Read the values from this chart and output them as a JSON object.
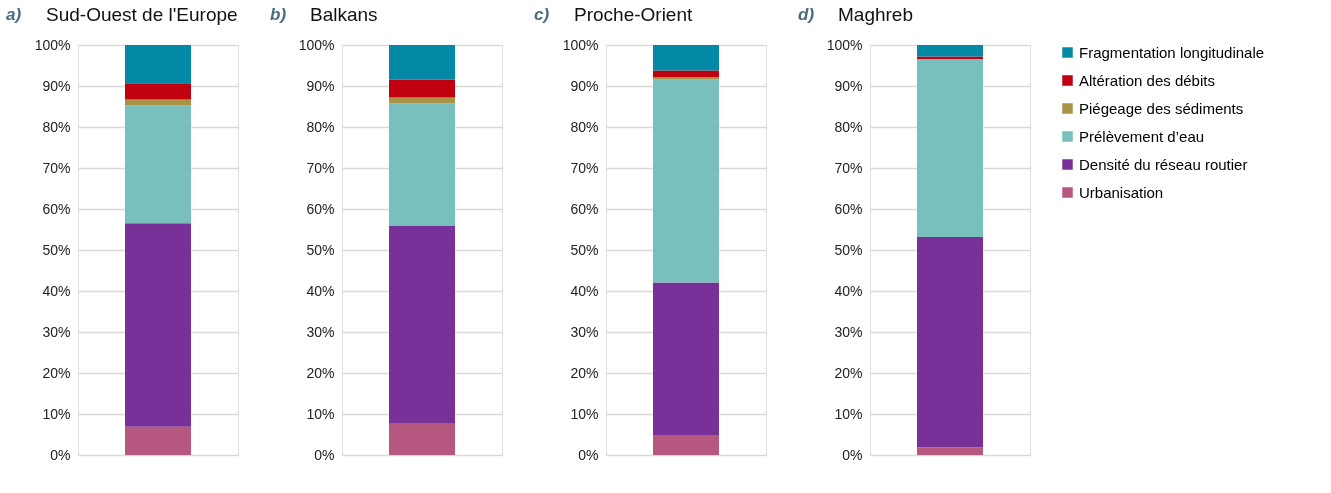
{
  "chart_data": [
    {
      "type": "bar",
      "stacked": true,
      "title": "Sud-Ouest de l'Europe",
      "annotations": [
        "a)"
      ],
      "categories": [
        null
      ],
      "ylim": [
        0,
        100
      ],
      "yticks": [
        {
          "value": 0,
          "label": "0%"
        },
        {
          "value": 10,
          "label": "10%"
        },
        {
          "value": 20,
          "label": "20%"
        },
        {
          "value": 30,
          "label": "30%"
        },
        {
          "value": 40,
          "label": "40%"
        },
        {
          "value": 50,
          "label": "50%"
        },
        {
          "value": 60,
          "label": "60%"
        },
        {
          "value": 70,
          "label": "70%"
        },
        {
          "value": 80,
          "label": "80%"
        },
        {
          "value": 90,
          "label": "90%"
        },
        {
          "value": 100,
          "label": "100%"
        }
      ],
      "grid": "y",
      "legend": false,
      "series": [
        {
          "color": "#b5577f",
          "values": [
            6.9
          ]
        },
        {
          "color": "#783198",
          "values": [
            49.6
          ]
        },
        {
          "color": "#78bfbe",
          "values": [
            28.8
          ]
        },
        {
          "color": "#a99445",
          "values": [
            1.4
          ]
        },
        {
          "color": "#c0000f",
          "values": [
            4.0
          ]
        },
        {
          "color": "#0388a6",
          "values": [
            9.3
          ]
        }
      ]
    },
    {
      "type": "bar",
      "stacked": true,
      "title": "Balkans",
      "annotations": [
        "b)"
      ],
      "categories": [
        null
      ],
      "ylim": [
        0,
        100
      ],
      "yticks": [
        {
          "value": 0,
          "label": "0%"
        },
        {
          "value": 10,
          "label": "10%"
        },
        {
          "value": 20,
          "label": "20%"
        },
        {
          "value": 30,
          "label": "30%"
        },
        {
          "value": 40,
          "label": "40%"
        },
        {
          "value": 50,
          "label": "50%"
        },
        {
          "value": 60,
          "label": "60%"
        },
        {
          "value": 70,
          "label": "70%"
        },
        {
          "value": 80,
          "label": "80%"
        },
        {
          "value": 90,
          "label": "90%"
        },
        {
          "value": 100,
          "label": "100%"
        }
      ],
      "grid": "y",
      "legend": false,
      "series": [
        {
          "color": "#b5577f",
          "values": [
            7.6
          ]
        },
        {
          "color": "#783198",
          "values": [
            48.4
          ]
        },
        {
          "color": "#78bfbe",
          "values": [
            29.8
          ]
        },
        {
          "color": "#a99445",
          "values": [
            1.4
          ]
        },
        {
          "color": "#c0000f",
          "values": [
            4.4
          ]
        },
        {
          "color": "#0388a6",
          "values": [
            8.4
          ]
        }
      ]
    },
    {
      "type": "bar",
      "stacked": true,
      "title": "Proche-Orient",
      "annotations": [
        "c)"
      ],
      "categories": [
        null
      ],
      "ylim": [
        0,
        100
      ],
      "yticks": [
        {
          "value": 0,
          "label": "0%"
        },
        {
          "value": 10,
          "label": "10%"
        },
        {
          "value": 20,
          "label": "20%"
        },
        {
          "value": 30,
          "label": "30%"
        },
        {
          "value": 40,
          "label": "40%"
        },
        {
          "value": 50,
          "label": "50%"
        },
        {
          "value": 60,
          "label": "60%"
        },
        {
          "value": 70,
          "label": "70%"
        },
        {
          "value": 80,
          "label": "80%"
        },
        {
          "value": 90,
          "label": "90%"
        },
        {
          "value": 100,
          "label": "100%"
        }
      ],
      "grid": "y",
      "legend": false,
      "series": [
        {
          "color": "#b5577f",
          "values": [
            4.9
          ]
        },
        {
          "color": "#783198",
          "values": [
            37.2
          ]
        },
        {
          "color": "#78bfbe",
          "values": [
            49.5
          ]
        },
        {
          "color": "#a99445",
          "values": [
            0.6
          ]
        },
        {
          "color": "#c0000f",
          "values": [
            1.6
          ]
        },
        {
          "color": "#0388a6",
          "values": [
            6.2
          ]
        }
      ]
    },
    {
      "type": "bar",
      "stacked": true,
      "title": "Maghreb",
      "annotations": [
        "d)"
      ],
      "categories": [
        null
      ],
      "ylim": [
        0,
        100
      ],
      "yticks": [
        {
          "value": 0,
          "label": "0%"
        },
        {
          "value": 10,
          "label": "10%"
        },
        {
          "value": 20,
          "label": "20%"
        },
        {
          "value": 30,
          "label": "30%"
        },
        {
          "value": 40,
          "label": "40%"
        },
        {
          "value": 50,
          "label": "50%"
        },
        {
          "value": 60,
          "label": "60%"
        },
        {
          "value": 70,
          "label": "70%"
        },
        {
          "value": 80,
          "label": "80%"
        },
        {
          "value": 90,
          "label": "90%"
        },
        {
          "value": 100,
          "label": "100%"
        }
      ],
      "grid": "y",
      "legend": "right",
      "series": [
        {
          "name": "Urbanisation",
          "color": "#b5577f",
          "values": [
            1.9
          ]
        },
        {
          "name": "Densité du réseau routier",
          "color": "#783198",
          "values": [
            51.3
          ]
        },
        {
          "name": "Prélèvement d’eau",
          "color": "#78bfbe",
          "values": [
            43.2
          ]
        },
        {
          "name": "Piégeage des sédiments",
          "color": "#a99445",
          "values": [
            0.2
          ]
        },
        {
          "name": "Altération des débits",
          "color": "#c0000f",
          "values": [
            0.6
          ]
        },
        {
          "name": "Fragmentation longitudinale",
          "color": "#0388a6",
          "values": [
            2.8
          ]
        }
      ]
    }
  ]
}
